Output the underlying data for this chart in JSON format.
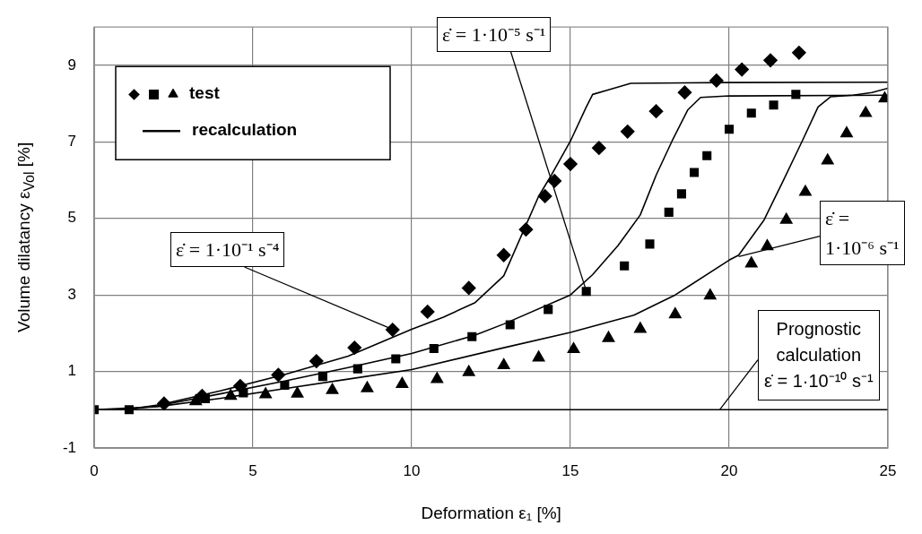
{
  "chart_data": {
    "type": "scatter",
    "xlabel": "Deformation ε₁ [%]",
    "ylabel": "Volume dilatancy ε$_{Vol}$ [%]",
    "xlim": [
      0,
      25
    ],
    "xticks": [
      0,
      5,
      10,
      15,
      20,
      25
    ],
    "ylim": [
      -1,
      10
    ],
    "yticks": [
      -1,
      1,
      3,
      5,
      7,
      9
    ],
    "grid": true,
    "legend": "top left",
    "series": [
      {
        "type": "scatter",
        "marker": "diamond",
        "color": "#000000",
        "x": [
          2.2,
          3.4,
          4.6,
          5.8,
          7.0,
          8.2,
          9.4,
          10.5,
          11.8,
          12.9,
          13.6,
          14.2,
          14.5,
          15.0,
          15.9,
          16.8,
          17.7,
          18.6,
          19.6,
          20.4,
          21.3,
          22.2
        ],
        "values": [
          0.16,
          0.36,
          0.62,
          0.91,
          1.27,
          1.62,
          2.09,
          2.56,
          3.18,
          4.04,
          4.71,
          5.58,
          5.98,
          6.42,
          6.84,
          7.27,
          7.8,
          8.29,
          8.6,
          8.89,
          9.13,
          9.33
        ]
      },
      {
        "type": "scatter",
        "marker": "square",
        "color": "#000000",
        "x": [
          0,
          1.1,
          3.5,
          4.7,
          6.0,
          7.2,
          8.3,
          9.5,
          10.7,
          11.9,
          13.1,
          14.3,
          15.5,
          16.7,
          17.5,
          18.1,
          18.5,
          18.9,
          19.3,
          20.0,
          20.7,
          21.4,
          22.1
        ],
        "values": [
          0,
          0,
          0.29,
          0.44,
          0.64,
          0.87,
          1.07,
          1.33,
          1.6,
          1.91,
          2.22,
          2.62,
          3.09,
          3.76,
          4.33,
          5.16,
          5.64,
          6.2,
          6.64,
          7.33,
          7.75,
          7.96,
          8.24
        ]
      },
      {
        "name": "test",
        "type": "scatter",
        "marker": "triangle",
        "color": "#000000",
        "x": [
          3.2,
          4.3,
          5.4,
          6.4,
          7.5,
          8.6,
          9.7,
          10.8,
          11.8,
          12.9,
          14.0,
          15.1,
          16.2,
          17.2,
          18.3,
          19.4,
          20.7,
          21.2,
          21.8,
          22.4,
          23.1,
          23.7,
          24.3,
          24.9
        ],
        "values": [
          0.22,
          0.36,
          0.4,
          0.42,
          0.51,
          0.56,
          0.67,
          0.8,
          0.98,
          1.16,
          1.36,
          1.58,
          1.87,
          2.11,
          2.49,
          2.98,
          3.82,
          4.27,
          4.96,
          5.69,
          6.51,
          7.22,
          7.75,
          8.13
        ]
      },
      {
        "name": "recalculation",
        "type": "line",
        "marker": "none",
        "line_style": "solid",
        "color": "#000000",
        "x": [
          0,
          1,
          2,
          4,
          6,
          8,
          10,
          11,
          12,
          12.9,
          14.0,
          14.4,
          15.0,
          15.5,
          15.7,
          16.2,
          16.9,
          20,
          25
        ],
        "values": [
          0,
          0,
          0.12,
          0.5,
          0.92,
          1.4,
          2.1,
          2.42,
          2.8,
          3.5,
          5.58,
          6.13,
          7.02,
          7.91,
          8.24,
          8.36,
          8.53,
          8.55,
          8.56
        ]
      },
      {
        "type": "line",
        "marker": "none",
        "line_style": "solid",
        "color": "#000000",
        "x": [
          0,
          1,
          2,
          4,
          6,
          8,
          10,
          12,
          12.9,
          15.0,
          15.7,
          16.5,
          17.2,
          17.7,
          18.2,
          18.7,
          19.1,
          20,
          25
        ],
        "values": [
          0,
          0,
          0.1,
          0.42,
          0.75,
          1.1,
          1.47,
          1.95,
          2.24,
          3.0,
          3.53,
          4.29,
          5.09,
          6.13,
          7.02,
          7.84,
          8.16,
          8.2,
          8.22
        ]
      },
      {
        "type": "line",
        "marker": "none",
        "line_style": "solid",
        "color": "#000000",
        "x": [
          0,
          2,
          4,
          6,
          8,
          10,
          12.9,
          15,
          17,
          18.3,
          20,
          20.3,
          21.1,
          21.7,
          22.3,
          22.8,
          23.2,
          23.9,
          24.5,
          25
        ],
        "values": [
          0,
          0.08,
          0.3,
          0.55,
          0.8,
          1.05,
          1.62,
          2.02,
          2.47,
          3.0,
          3.91,
          4.04,
          4.96,
          5.98,
          7.02,
          7.91,
          8.18,
          8.22,
          8.29,
          8.4
        ]
      },
      {
        "type": "line",
        "marker": "none",
        "line_style": "solid",
        "color": "#000000",
        "x": [
          0,
          25
        ],
        "values": [
          0,
          0
        ]
      }
    ],
    "annotations": [
      {
        "text": "ε̇ = 1·10⁻¹ s⁻⁴",
        "x": 9.4,
        "y": 2.1
      },
      {
        "text": "ε̇ = 1·10⁻⁵ s⁻¹",
        "x": 15.5,
        "y": 3.1
      },
      {
        "text": "ε̇ =\n1·10⁻⁶ s⁻¹",
        "x": 20.3,
        "y": 4.0
      },
      {
        "text": "Prognostic\ncalculation\nε̇ = 1·10⁻¹⁰ s⁻¹",
        "x": 19.7,
        "y": 0
      }
    ]
  }
}
